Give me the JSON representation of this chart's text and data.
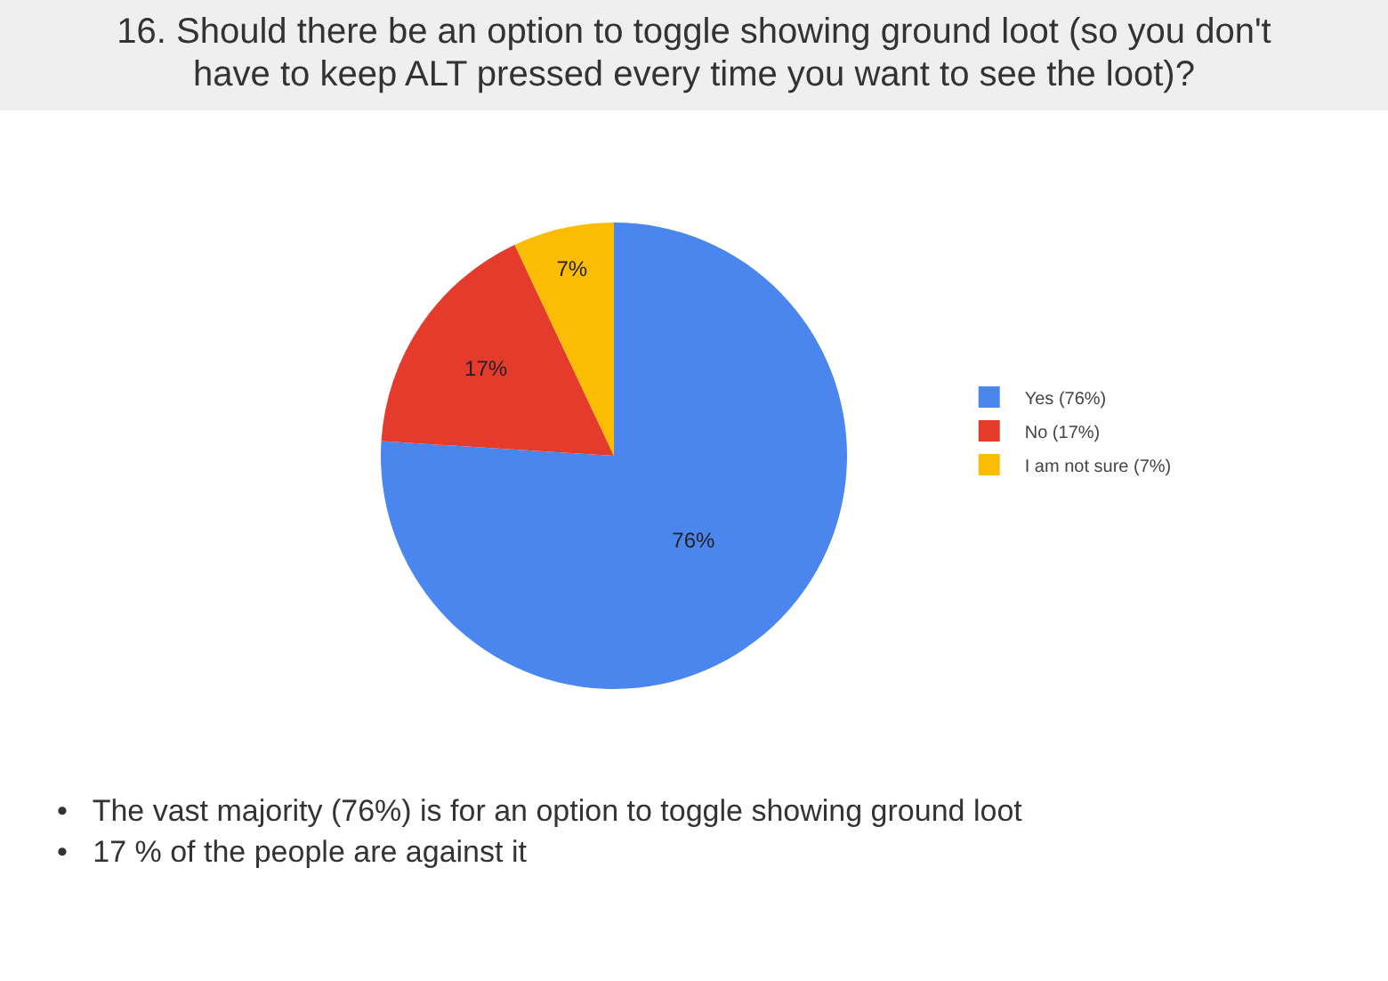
{
  "chart_data": {
    "type": "pie",
    "title": "16. Should there be an option to toggle showing ground loot (so you don't have to keep ALT pressed every time you want to see the loot)?",
    "categories": [
      "Yes (76%)",
      "No (17%)",
      "I am not sure (7%)"
    ],
    "values": [
      76,
      17,
      7
    ],
    "colors": [
      "#4a86ee",
      "#e53b2c",
      "#fbbc04"
    ],
    "value_labels": [
      "76%",
      "17%",
      "7%"
    ],
    "legend": "right",
    "annotations": [
      "•   The vast majority (76%) is for an option to toggle showing ground loot",
      "•   17 % of the people are against it"
    ]
  }
}
